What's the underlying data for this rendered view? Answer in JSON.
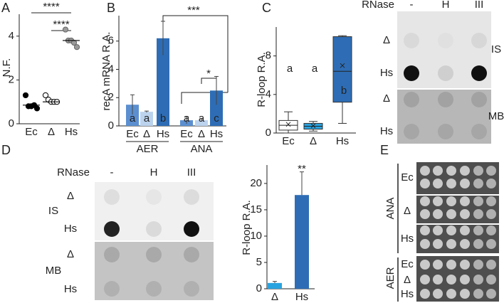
{
  "panels": [
    "A",
    "B",
    "C",
    "D",
    "E"
  ],
  "chart_data": [
    {
      "type": "strip",
      "ylabel": "N.F.",
      "categories": [
        "Ec",
        "Δ",
        "Hs"
      ],
      "values": [
        [
          1.3,
          0.8,
          0.8,
          0.85,
          0.7
        ],
        [
          1.3,
          1.1,
          1.0,
          1.0,
          1.0
        ],
        [
          4.3,
          3.8,
          3.8,
          3.7,
          3.5
        ]
      ],
      "medians": [
        0.85,
        1.0,
        3.8
      ],
      "colors": [
        "#000000",
        "#ffffff",
        "#9a9a9a"
      ],
      "ylim": [
        0,
        5
      ],
      "yticks": [
        0,
        2,
        4
      ],
      "annotations": [
        "****",
        "****"
      ]
    },
    {
      "type": "grouped_bar",
      "ylabel": "recA mRNA R.A.",
      "groups": [
        "AER",
        "ANA"
      ],
      "categories": [
        "Ec",
        "Δ",
        "Hs",
        "Ec",
        "Δ",
        "Hs"
      ],
      "values": [
        1.5,
        1.0,
        6.2,
        0.4,
        0.4,
        2.5
      ],
      "errors": [
        0.7,
        0.05,
        1.2,
        0.25,
        0.1,
        1.0
      ],
      "colors": [
        "#5b8fd0",
        "#bcd3ee",
        "#2e6db5",
        "#5b8fd0",
        "#bcd3ee",
        "#2e6db5"
      ],
      "letters": [
        "a",
        "a",
        "b",
        "a",
        "a",
        "c"
      ],
      "ylim": [
        0,
        7.8
      ],
      "yticks": [
        0,
        2,
        4,
        6
      ],
      "annotations": [
        "***",
        "*"
      ]
    },
    {
      "type": "box",
      "ylabel": "R-loop R.A.",
      "categories": [
        "Ec",
        "Δ",
        "Hs"
      ],
      "min": [
        0,
        0.2,
        1.0
      ],
      "q1": [
        0.3,
        0.4,
        3.2
      ],
      "median": [
        0.8,
        0.7,
        6.4
      ],
      "q3": [
        1.3,
        1.0,
        10.0
      ],
      "max": [
        2.2,
        1.2,
        10.1
      ],
      "mean": [
        0.9,
        0.75,
        7.0
      ],
      "colors": [
        "#ffffff",
        "#29a3e0",
        "#2e6db5"
      ],
      "letters": [
        "a",
        "a",
        "b"
      ],
      "ylim": [
        0,
        11
      ],
      "yticks": [
        0,
        4,
        8
      ]
    },
    {
      "type": "bar",
      "ylabel": "R-loop R.A.",
      "categories": [
        "Δ",
        "Hs"
      ],
      "values": [
        1.1,
        17.8
      ],
      "errors": [
        0.3,
        4.4
      ],
      "colors": [
        "#29a3e0",
        "#2e6db5"
      ],
      "ylim": [
        0,
        23.5
      ],
      "yticks": [
        0,
        5,
        10,
        15,
        20
      ],
      "annotations": [
        "**"
      ]
    }
  ],
  "blot_c": {
    "header": "RNase",
    "lanes": [
      "-",
      "H",
      "III"
    ],
    "rows": [
      "Δ",
      "Hs",
      "Δ",
      "Hs"
    ],
    "stains": [
      "IS",
      "MB"
    ]
  },
  "blot_d": {
    "header": "RNase",
    "lanes": [
      "-",
      "H",
      "III"
    ],
    "rows": [
      "Δ",
      "Hs",
      "Δ",
      "Hs"
    ],
    "stains": [
      "IS",
      "MB"
    ]
  },
  "plate_e": {
    "conditions": [
      "ANA",
      "AER"
    ],
    "strains": [
      "Ec",
      "Δ",
      "Hs",
      "Ec",
      "Δ",
      "Hs"
    ]
  }
}
